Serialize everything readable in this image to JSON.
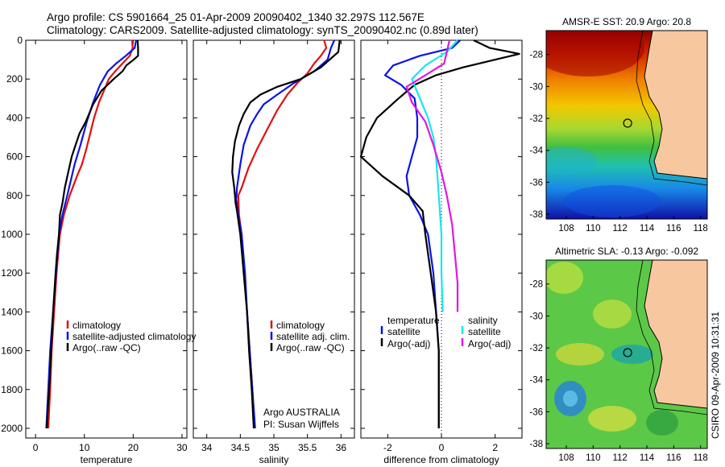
{
  "header": {
    "line1": "Argo profile: CS 5901664_25 01-Apr-2009 20090402_1340 32.297S 112.567E",
    "line2": "Climatology: CARS2009. Satellite-adjusted climatology: synTS_20090402.nc (0.89d later)"
  },
  "side_stamp": "CSIRO 09-Apr-2009 10:31:31",
  "colors": {
    "climatology": "#e01010",
    "satellite": "#0a14e6",
    "argo": "#000000",
    "salinity_satellite": "#18e6ee",
    "salinity_argo": "#e018e0",
    "land": "#f7c8a0"
  },
  "chart_data": [
    {
      "id": "temperature",
      "type": "line",
      "xlabel": "temperature",
      "xlim": [
        -2,
        31
      ],
      "ylim": [
        0,
        2050
      ],
      "y_reversed": true,
      "xticks": [
        0,
        10,
        20,
        30
      ],
      "yticks": [
        0,
        200,
        400,
        600,
        800,
        1000,
        1200,
        1400,
        1600,
        1800,
        2000
      ],
      "legend": [
        "climatology",
        "satellite-adjusted climatology",
        "Argo(..raw -QC)"
      ],
      "series": [
        {
          "key": "climatology",
          "name": "climatology",
          "color": "#e01010",
          "points": [
            [
              19.8,
              0
            ],
            [
              19.9,
              40
            ],
            [
              19.3,
              80
            ],
            [
              17.8,
              120
            ],
            [
              16.3,
              160
            ],
            [
              15.0,
              200
            ],
            [
              14.0,
              260
            ],
            [
              13.0,
              320
            ],
            [
              12.0,
              400
            ],
            [
              11.2,
              480
            ],
            [
              10.4,
              560
            ],
            [
              9.5,
              640
            ],
            [
              8.5,
              700
            ],
            [
              7.0,
              800
            ],
            [
              5.8,
              900
            ],
            [
              5.0,
              1000
            ],
            [
              4.3,
              1200
            ],
            [
              3.8,
              1400
            ],
            [
              3.3,
              1600
            ],
            [
              3.0,
              1800
            ],
            [
              2.6,
              2000
            ]
          ]
        },
        {
          "key": "satellite",
          "name": "satellite-adjusted climatology",
          "color": "#0a14e6",
          "points": [
            [
              20.6,
              0
            ],
            [
              20.3,
              40
            ],
            [
              18.5,
              80
            ],
            [
              16.5,
              120
            ],
            [
              14.8,
              160
            ],
            [
              13.2,
              230
            ],
            [
              11.8,
              320
            ],
            [
              10.5,
              420
            ],
            [
              9.2,
              540
            ],
            [
              8.0,
              640
            ],
            [
              6.5,
              800
            ],
            [
              5.5,
              900
            ],
            [
              4.8,
              1000
            ],
            [
              4.2,
              1200
            ],
            [
              3.6,
              1400
            ],
            [
              3.0,
              1600
            ],
            [
              2.6,
              1800
            ],
            [
              2.2,
              2000
            ]
          ]
        },
        {
          "key": "argo",
          "name": "Argo(..raw -QC)",
          "color": "#000000",
          "points": [
            [
              20.9,
              0
            ],
            [
              21.0,
              40
            ],
            [
              21.0,
              80
            ],
            [
              20.1,
              100
            ],
            [
              18.6,
              130
            ],
            [
              17.8,
              160
            ],
            [
              16.0,
              200
            ],
            [
              13.5,
              260
            ],
            [
              11.8,
              330
            ],
            [
              10.3,
              420
            ],
            [
              9.0,
              480
            ],
            [
              8.2,
              540
            ],
            [
              7.4,
              600
            ],
            [
              6.7,
              680
            ],
            [
              6.0,
              760
            ],
            [
              5.5,
              840
            ],
            [
              5.0,
              900
            ],
            [
              4.8,
              1000
            ],
            [
              4.4,
              1100
            ],
            [
              4.1,
              1200
            ],
            [
              3.6,
              1400
            ],
            [
              3.2,
              1600
            ],
            [
              2.8,
              1800
            ],
            [
              2.5,
              1900
            ],
            [
              2.3,
              2000
            ]
          ]
        }
      ]
    },
    {
      "id": "salinity",
      "type": "line",
      "xlabel": "salinity",
      "xlim": [
        33.8,
        36.2
      ],
      "ylim": [
        0,
        2050
      ],
      "y_reversed": true,
      "xticks": [
        34,
        34.5,
        35,
        35.5,
        36
      ],
      "legend": [
        "climatology",
        "satellite adj. clim.",
        "Argo(..raw -QC)"
      ],
      "annotation": [
        "Argo AUSTRALIA",
        "PI: Susan Wijffels"
      ],
      "series": [
        {
          "key": "climatology",
          "name": "climatology",
          "color": "#e01010",
          "points": [
            [
              35.75,
              0
            ],
            [
              35.78,
              40
            ],
            [
              35.7,
              80
            ],
            [
              35.6,
              120
            ],
            [
              35.5,
              170
            ],
            [
              35.35,
              220
            ],
            [
              35.2,
              280
            ],
            [
              35.05,
              360
            ],
            [
              34.9,
              460
            ],
            [
              34.75,
              560
            ],
            [
              34.62,
              660
            ],
            [
              34.52,
              760
            ],
            [
              34.47,
              800
            ],
            [
              34.48,
              900
            ],
            [
              34.52,
              1000
            ],
            [
              34.56,
              1200
            ],
            [
              34.6,
              1400
            ],
            [
              34.64,
              1600
            ],
            [
              34.68,
              1800
            ],
            [
              34.71,
              2000
            ]
          ]
        },
        {
          "key": "satellite",
          "name": "satellite adj. clim.",
          "color": "#0a14e6",
          "points": [
            [
              35.9,
              0
            ],
            [
              35.85,
              40
            ],
            [
              35.8,
              100
            ],
            [
              35.6,
              160
            ],
            [
              35.3,
              220
            ],
            [
              35.05,
              280
            ],
            [
              34.85,
              330
            ],
            [
              34.75,
              380
            ],
            [
              34.65,
              440
            ],
            [
              34.55,
              540
            ],
            [
              34.5,
              640
            ],
            [
              34.45,
              760
            ],
            [
              34.44,
              820
            ],
            [
              34.47,
              900
            ],
            [
              34.52,
              1000
            ],
            [
              34.57,
              1200
            ],
            [
              34.6,
              1400
            ],
            [
              34.64,
              1600
            ],
            [
              34.68,
              1800
            ],
            [
              34.72,
              2000
            ]
          ]
        },
        {
          "key": "argo",
          "name": "Argo(..raw -QC)",
          "color": "#000000",
          "points": [
            [
              35.98,
              0
            ],
            [
              35.96,
              60
            ],
            [
              35.7,
              140
            ],
            [
              35.4,
              200
            ],
            [
              35.05,
              240
            ],
            [
              34.8,
              280
            ],
            [
              34.65,
              320
            ],
            [
              34.55,
              380
            ],
            [
              34.48,
              440
            ],
            [
              34.42,
              520
            ],
            [
              34.39,
              600
            ],
            [
              34.38,
              680
            ],
            [
              34.41,
              760
            ],
            [
              34.43,
              840
            ],
            [
              34.45,
              880
            ],
            [
              34.5,
              1000
            ],
            [
              34.55,
              1200
            ],
            [
              34.6,
              1400
            ],
            [
              34.63,
              1600
            ],
            [
              34.67,
              1800
            ],
            [
              34.7,
              2000
            ]
          ]
        }
      ]
    },
    {
      "id": "difference",
      "type": "line",
      "xlabel": "difference from climatology",
      "xlim": [
        -3,
        3
      ],
      "ylim": [
        0,
        2050
      ],
      "y_reversed": true,
      "xticks": [
        -2,
        0,
        2
      ],
      "zero_line": true,
      "legend_left": [
        "temperature",
        "satellite",
        "Argo(-adj)"
      ],
      "legend_right": [
        "salinity",
        "satellite",
        "Argo(-adj)"
      ],
      "series": [
        {
          "key": "temp_satellite",
          "name": "satellite",
          "color": "#0a14e6",
          "points": [
            [
              0.7,
              0
            ],
            [
              0.4,
              40
            ],
            [
              -0.8,
              80
            ],
            [
              -1.8,
              130
            ],
            [
              -2.1,
              180
            ],
            [
              -1.5,
              230
            ],
            [
              -1.0,
              300
            ],
            [
              -0.9,
              400
            ],
            [
              -0.9,
              500
            ],
            [
              -1.1,
              600
            ],
            [
              -1.3,
              700
            ],
            [
              -1.2,
              800
            ],
            [
              -0.8,
              900
            ],
            [
              -0.5,
              1000
            ],
            [
              -0.3,
              1200
            ],
            [
              -0.2,
              1400
            ],
            [
              -0.1,
              1600
            ],
            [
              -0.1,
              1800
            ],
            [
              -0.1,
              2000
            ]
          ]
        },
        {
          "key": "temp_argo",
          "name": "Argo(-adj)",
          "color": "#000000",
          "points": [
            [
              1.2,
              0
            ],
            [
              1.8,
              40
            ],
            [
              2.9,
              70
            ],
            [
              2.0,
              100
            ],
            [
              0.8,
              140
            ],
            [
              -0.2,
              180
            ],
            [
              -1.0,
              230
            ],
            [
              -1.6,
              300
            ],
            [
              -2.4,
              400
            ],
            [
              -2.8,
              500
            ],
            [
              -3.0,
              600
            ],
            [
              -2.2,
              700
            ],
            [
              -1.2,
              800
            ],
            [
              -0.7,
              880
            ],
            [
              -0.6,
              1000
            ],
            [
              -0.4,
              1200
            ],
            [
              -0.2,
              1400
            ],
            [
              -0.1,
              1600
            ],
            [
              -0.1,
              1800
            ],
            [
              -0.1,
              2000
            ]
          ]
        },
        {
          "key": "sal_satellite",
          "name": "satellite",
          "color": "#18e6ee",
          "points": [
            [
              0.6,
              0
            ],
            [
              0.2,
              60
            ],
            [
              -0.6,
              130
            ],
            [
              -1.1,
              200
            ],
            [
              -0.8,
              300
            ],
            [
              -0.5,
              400
            ],
            [
              -0.3,
              500
            ],
            [
              -0.2,
              600
            ],
            [
              -0.1,
              800
            ],
            [
              0.0,
              1000
            ],
            [
              0.0,
              1200
            ],
            [
              0.05,
              1400
            ]
          ]
        },
        {
          "key": "sal_argo",
          "name": "Argo(-adj)",
          "color": "#e018e0",
          "points": [
            [
              0.3,
              0
            ],
            [
              0.2,
              60
            ],
            [
              0.1,
              120
            ],
            [
              -0.6,
              180
            ],
            [
              -1.3,
              240
            ],
            [
              -1.1,
              320
            ],
            [
              -0.6,
              420
            ],
            [
              -0.3,
              540
            ],
            [
              0.0,
              680
            ],
            [
              0.2,
              800
            ],
            [
              0.4,
              950
            ],
            [
              0.5,
              1100
            ],
            [
              0.6,
              1250
            ],
            [
              0.6,
              1400
            ]
          ]
        }
      ]
    },
    {
      "id": "sst_map",
      "type": "heatmap",
      "title": "AMSR-E SST: 20.9 Argo: 20.8",
      "xlim": [
        106.5,
        118.5
      ],
      "ylim": [
        -38.3,
        -26.5
      ],
      "xticks": [
        108,
        110,
        112,
        114,
        116,
        118
      ],
      "yticks": [
        -28,
        -30,
        -32,
        -34,
        -36,
        -38
      ],
      "argo_position": [
        112.567,
        -32.297
      ]
    },
    {
      "id": "sla_map",
      "type": "heatmap",
      "title": "Altimetric SLA: -0.13 Argo: -0.092",
      "xlim": [
        106.5,
        118.5
      ],
      "ylim": [
        -38.3,
        -26.5
      ],
      "xticks": [
        108,
        110,
        112,
        114,
        116,
        118
      ],
      "yticks": [
        -28,
        -30,
        -32,
        -34,
        -36,
        -38
      ],
      "argo_position": [
        112.567,
        -32.297
      ]
    }
  ]
}
